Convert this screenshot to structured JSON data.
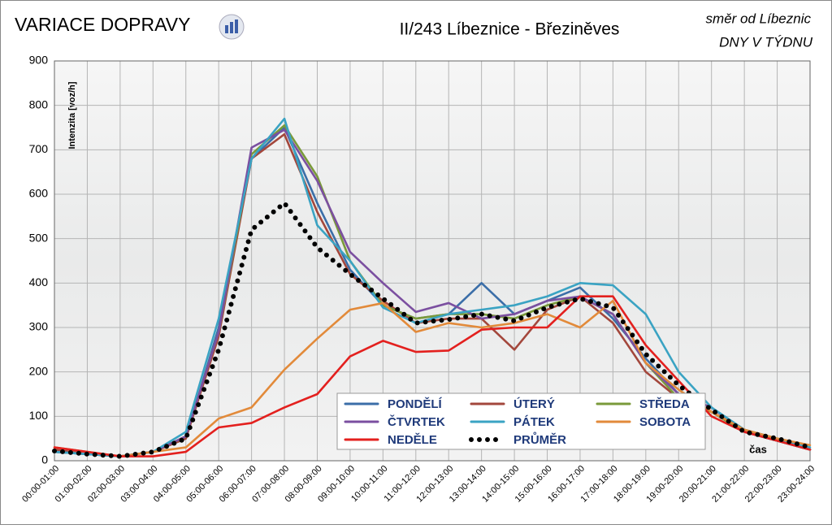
{
  "chart_data": {
    "type": "line",
    "title": "VARIACE DOPRAVY",
    "subtitle": "II/243 Líbeznice - Březiněves",
    "direction": "směr od Líbeznic",
    "period": "DNY V TÝDNU",
    "ylabel": "Intenzita  [voz/h]",
    "xlabel": "čas",
    "categories": [
      "00:00-01:00",
      "01:00-02:00",
      "02:00-03:00",
      "03:00-04:00",
      "04:00-05:00",
      "05:00-06:00",
      "06:00-07:00",
      "07:00-08:00",
      "08:00-09:00",
      "09:00-10:00",
      "10:00-11:00",
      "11:00-12:00",
      "12:00-13:00",
      "13:00-14:00",
      "14:00-15:00",
      "15:00-16:00",
      "16:00-17:00",
      "17:00-18:00",
      "18:00-19:00",
      "19:00-20:00",
      "20:00-21:00",
      "21:00-22:00",
      "22:00-23:00",
      "23:00-24:00"
    ],
    "series": [
      {
        "name": "PONDĚLÍ",
        "color": "#3b6ea8",
        "values": [
          20,
          15,
          10,
          20,
          50,
          300,
          680,
          750,
          580,
          430,
          350,
          320,
          330,
          400,
          330,
          360,
          390,
          320,
          230,
          150,
          120,
          65,
          45,
          25
        ]
      },
      {
        "name": "ÚTERÝ",
        "color": "#a3473c",
        "values": [
          25,
          15,
          10,
          20,
          50,
          280,
          680,
          735,
          560,
          420,
          360,
          310,
          320,
          320,
          250,
          340,
          370,
          310,
          200,
          140,
          110,
          65,
          45,
          25
        ]
      },
      {
        "name": "STŘEDA",
        "color": "#7a9a3a",
        "values": [
          20,
          15,
          10,
          20,
          55,
          290,
          690,
          755,
          640,
          450,
          350,
          320,
          330,
          330,
          320,
          350,
          370,
          330,
          220,
          140,
          110,
          65,
          45,
          25
        ]
      },
      {
        "name": "ČTVRTEK",
        "color": "#7b4fa0",
        "values": [
          20,
          15,
          10,
          20,
          55,
          290,
          705,
          745,
          630,
          470,
          400,
          335,
          355,
          320,
          330,
          360,
          370,
          330,
          220,
          150,
          120,
          65,
          45,
          25
        ]
      },
      {
        "name": "PÁTEK",
        "color": "#3aa3c3",
        "values": [
          20,
          15,
          10,
          20,
          65,
          320,
          680,
          770,
          530,
          450,
          345,
          310,
          330,
          340,
          350,
          370,
          400,
          395,
          330,
          200,
          120,
          70,
          50,
          30
        ]
      },
      {
        "name": "SOBOTA",
        "color": "#e28a3a",
        "values": [
          30,
          20,
          10,
          20,
          30,
          95,
          120,
          205,
          275,
          340,
          355,
          290,
          310,
          300,
          310,
          330,
          300,
          360,
          220,
          160,
          110,
          70,
          50,
          35
        ]
      },
      {
        "name": "NEDĚLE",
        "color": "#e3201e",
        "values": [
          30,
          20,
          10,
          10,
          20,
          75,
          85,
          120,
          150,
          235,
          270,
          245,
          248,
          295,
          300,
          300,
          370,
          370,
          260,
          180,
          100,
          65,
          45,
          25
        ]
      },
      {
        "name": "PRŮMĚR",
        "color": "#000000",
        "style": "dotted",
        "values": [
          22,
          15,
          10,
          20,
          50,
          250,
          520,
          580,
          480,
          420,
          365,
          310,
          318,
          330,
          315,
          345,
          365,
          345,
          240,
          170,
          115,
          65,
          50,
          30
        ]
      }
    ],
    "ylim": [
      0,
      900
    ],
    "yticks": [
      0,
      100,
      200,
      300,
      400,
      500,
      600,
      700,
      800,
      900
    ],
    "grid": true
  }
}
